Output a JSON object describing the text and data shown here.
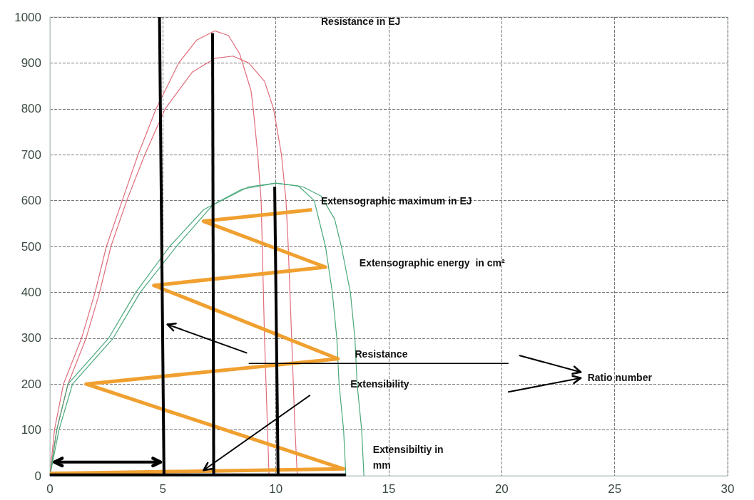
{
  "chart_data": {
    "type": "line",
    "xlim": [
      0,
      30
    ],
    "xticks": [
      0,
      5,
      10,
      15,
      20,
      25,
      30
    ],
    "ylim": [
      0,
      1000
    ],
    "yticks": [
      0,
      100,
      200,
      300,
      400,
      500,
      600,
      700,
      800,
      900,
      1000
    ],
    "grid": true,
    "marker": "none",
    "line_style": "solid",
    "series": [
      {
        "color": "#e06c7a",
        "x": [
          0,
          0.2,
          0.6,
          1.4,
          2.0,
          2.5,
          3.2,
          3.9,
          4.7,
          5.7,
          6.5,
          7.3,
          7.9,
          8.4,
          8.9,
          9.0,
          9.2,
          9.35,
          9.4,
          9.5,
          9.6,
          9.7
        ],
        "values": [
          0,
          100,
          200,
          300,
          400,
          500,
          600,
          700,
          800,
          900,
          950,
          970,
          960,
          920,
          840,
          800,
          700,
          600,
          500,
          300,
          150,
          0
        ]
      },
      {
        "color": "#e06c7a",
        "x": [
          0,
          0.3,
          0.8,
          1.6,
          2.2,
          2.7,
          3.4,
          4.2,
          5.1,
          6.3,
          7.3,
          8.1,
          8.8,
          9.5,
          9.9,
          10.25,
          10.45,
          10.55,
          10.7,
          10.85,
          10.95
        ],
        "values": [
          0,
          100,
          200,
          300,
          400,
          500,
          600,
          700,
          800,
          880,
          910,
          915,
          900,
          860,
          800,
          700,
          600,
          500,
          300,
          100,
          0
        ]
      },
      {
        "color": "#4aa87a",
        "x": [
          0,
          0.3,
          0.8,
          2.6,
          3.8,
          5.3,
          6.8,
          8.5,
          10,
          11,
          11.7,
          12.2,
          12.5,
          12.7,
          12.8,
          13.0,
          13.1
        ],
        "values": [
          0,
          100,
          200,
          300,
          400,
          500,
          580,
          625,
          638,
          632,
          600,
          500,
          400,
          300,
          200,
          100,
          0
        ]
      },
      {
        "color": "#4aa87a",
        "x": [
          0,
          0.4,
          1.0,
          2.8,
          4.0,
          5.6,
          7.2,
          8.8,
          10,
          11.2,
          12.0,
          12.6,
          12.9,
          13.3,
          13.5,
          13.6,
          13.8,
          13.9
        ],
        "values": [
          0,
          100,
          200,
          300,
          400,
          500,
          590,
          630,
          638,
          630,
          610,
          560,
          500,
          400,
          300,
          200,
          100,
          0
        ]
      },
      {
        "color": "#f0a030",
        "x": [
          0,
          13.0,
          1.6,
          12.75,
          4.6,
          12.2,
          6.8,
          11.6
        ],
        "values": [
          5,
          15,
          200,
          255,
          415,
          455,
          555,
          580
        ]
      },
      {
        "color": "#000000",
        "x": [
          0,
          13.1
        ],
        "values": [
          2,
          2
        ]
      },
      {
        "color": "#000000",
        "x": [
          4.85,
          5.05
        ],
        "values": [
          1000,
          0
        ]
      },
      {
        "color": "#000000",
        "x": [
          7.2,
          7.25
        ],
        "values": [
          965,
          0
        ]
      },
      {
        "color": "#000000",
        "x": [
          9.95,
          10.1
        ],
        "values": [
          630,
          0
        ]
      }
    ],
    "annotations": [
      "Resistance in EJ",
      "Extensographic maximum in EJ",
      "Extensographic energy  in cm²",
      "Resistance",
      "Extensibility",
      "Ratio number",
      "Extensibiltiy in\nmm"
    ]
  }
}
